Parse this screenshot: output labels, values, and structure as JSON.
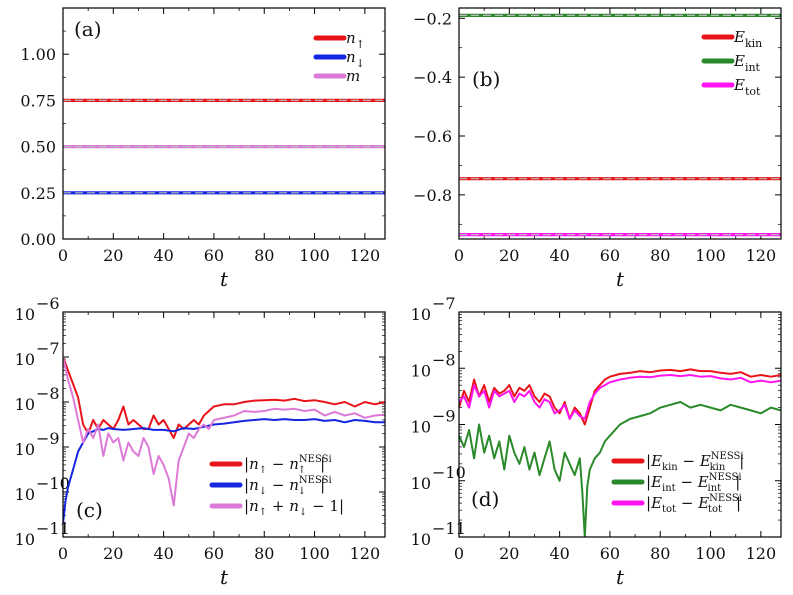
{
  "chart_data": [
    {
      "id": "a",
      "type": "line",
      "panel_label": "(a)",
      "xlabel": "t",
      "ylabel": "",
      "xlim": [
        0,
        128
      ],
      "ylim": [
        0,
        1.25
      ],
      "yscale": "linear",
      "xticks": [
        0,
        20,
        40,
        60,
        80,
        100,
        120
      ],
      "xtick_labels": [
        "0",
        "20",
        "40",
        "60",
        "80",
        "100",
        "120"
      ],
      "yticks": [
        0,
        0.25,
        0.5,
        0.75,
        1.0
      ],
      "ytick_labels": [
        "0.00",
        "0.25",
        "0.50",
        "0.75",
        "1.00"
      ],
      "legend_position": "top-right",
      "series": [
        {
          "name": "n↑",
          "label_main": "n",
          "label_sub": "↑",
          "color": "#e8141a",
          "dashed_overlay": true,
          "x": [
            0,
            128
          ],
          "values": [
            0.75,
            0.75
          ]
        },
        {
          "name": "n↓",
          "label_main": "n",
          "label_sub": "↓",
          "color": "#1426e0",
          "dashed_overlay": true,
          "x": [
            0,
            128
          ],
          "values": [
            0.25,
            0.25
          ]
        },
        {
          "name": "m",
          "label_main": "m",
          "label_sub": "",
          "color": "#dd7ad8",
          "dashed_overlay": true,
          "x": [
            0,
            128
          ],
          "values": [
            0.5,
            0.5
          ]
        }
      ]
    },
    {
      "id": "b",
      "type": "line",
      "panel_label": "(b)",
      "xlabel": "t",
      "ylabel": "",
      "xlim": [
        0,
        128
      ],
      "ylim": [
        -0.95,
        -0.165
      ],
      "yscale": "linear",
      "xticks": [
        0,
        20,
        40,
        60,
        80,
        100,
        120
      ],
      "xtick_labels": [
        "0",
        "20",
        "40",
        "60",
        "80",
        "100",
        "120"
      ],
      "yticks": [
        -0.2,
        -0.4,
        -0.6,
        -0.8
      ],
      "ytick_labels": [
        "−0.2",
        "−0.4",
        "−0.6",
        "−0.8"
      ],
      "legend_position": "top-right",
      "series": [
        {
          "name": "E_kin",
          "label_main": "E",
          "label_sub": "kin",
          "color": "#e8141a",
          "dashed_overlay": true,
          "x": [
            0,
            128
          ],
          "values": [
            -0.745,
            -0.745
          ]
        },
        {
          "name": "E_int",
          "label_main": "E",
          "label_sub": "int",
          "color": "#2a8a2a",
          "dashed_overlay": true,
          "x": [
            0,
            128
          ],
          "values": [
            -0.19,
            -0.19
          ]
        },
        {
          "name": "E_tot",
          "label_main": "E",
          "label_sub": "tot",
          "color": "#ff14f0",
          "dashed_overlay": true,
          "x": [
            0,
            128
          ],
          "values": [
            -0.935,
            -0.935
          ]
        }
      ]
    },
    {
      "id": "c",
      "type": "line",
      "panel_label": "(c)",
      "xlabel": "t",
      "ylabel": "",
      "xlim": [
        0,
        128
      ],
      "ylim": [
        -11,
        -6
      ],
      "yscale": "log10",
      "xticks": [
        0,
        20,
        40,
        60,
        80,
        100,
        120
      ],
      "xtick_labels": [
        "0",
        "20",
        "40",
        "60",
        "80",
        "100",
        "120"
      ],
      "yticks": [
        -11,
        -10,
        -9,
        -8,
        -7,
        -6
      ],
      "ytick_base": [
        "10",
        "10",
        "10",
        "10",
        "10",
        "10"
      ],
      "ytick_exp": [
        "−11",
        "−10",
        "−9",
        "−8",
        "−7",
        "−6"
      ],
      "legend_position": "bottom-right",
      "series": [
        {
          "name": "|n↑ − n↑^NESSi|",
          "label_parts": [
            "|",
            "n",
            "↑",
            " − ",
            "n",
            "↑",
            "NESSi",
            "|"
          ],
          "color": "#e8141a",
          "x": [
            0,
            2,
            4,
            6,
            8,
            10,
            12,
            14,
            16,
            18,
            20,
            22,
            24,
            26,
            28,
            30,
            32,
            34,
            36,
            38,
            40,
            42,
            44,
            46,
            48,
            50,
            52,
            54,
            56,
            58,
            60,
            64,
            68,
            72,
            76,
            80,
            84,
            88,
            92,
            96,
            100,
            104,
            108,
            112,
            116,
            120,
            124,
            128
          ],
          "values": [
            -7.0,
            -7.3,
            -7.6,
            -7.9,
            -8.5,
            -8.7,
            -8.4,
            -8.6,
            -8.4,
            -8.5,
            -8.6,
            -8.4,
            -8.1,
            -8.5,
            -8.4,
            -8.5,
            -8.6,
            -8.6,
            -8.3,
            -8.5,
            -8.4,
            -8.6,
            -8.8,
            -8.5,
            -8.6,
            -8.5,
            -8.4,
            -8.5,
            -8.3,
            -8.2,
            -8.1,
            -8.05,
            -8.05,
            -8.0,
            -7.97,
            -7.96,
            -7.95,
            -7.97,
            -7.93,
            -7.98,
            -7.96,
            -8.0,
            -8.05,
            -8.0,
            -8.1,
            -8.0,
            -8.05,
            -8.0
          ]
        },
        {
          "name": "|n↓ − n↓^NESSi|",
          "label_parts": [
            "|",
            "n",
            "↓",
            " − ",
            "n",
            "↓",
            "NESSi",
            "|"
          ],
          "color": "#1426e0",
          "x": [
            0,
            1,
            2,
            3,
            4,
            6,
            8,
            10,
            12,
            14,
            16,
            18,
            20,
            24,
            28,
            32,
            36,
            40,
            44,
            48,
            52,
            56,
            60,
            64,
            68,
            72,
            76,
            80,
            84,
            88,
            92,
            96,
            100,
            104,
            108,
            112,
            116,
            120,
            124,
            128
          ],
          "values": [
            -10.7,
            -10.2,
            -9.9,
            -9.7,
            -9.5,
            -9.1,
            -8.9,
            -8.7,
            -8.65,
            -8.6,
            -8.62,
            -8.58,
            -8.6,
            -8.62,
            -8.6,
            -8.58,
            -8.62,
            -8.62,
            -8.65,
            -8.58,
            -8.6,
            -8.55,
            -8.5,
            -8.48,
            -8.45,
            -8.42,
            -8.4,
            -8.38,
            -8.4,
            -8.38,
            -8.4,
            -8.4,
            -8.38,
            -8.42,
            -8.4,
            -8.45,
            -8.4,
            -8.42,
            -8.45,
            -8.45
          ]
        },
        {
          "name": "|n↑ + n↓ − 1|",
          "label_parts": [
            "|",
            "n",
            "↑",
            " + ",
            "n",
            "↓",
            " − 1",
            "|"
          ],
          "color": "#dd7ad8",
          "x": [
            0,
            2,
            4,
            6,
            8,
            10,
            12,
            14,
            16,
            18,
            20,
            22,
            24,
            26,
            28,
            30,
            32,
            34,
            36,
            38,
            40,
            42,
            44,
            46,
            48,
            50,
            52,
            54,
            56,
            58,
            60,
            64,
            68,
            72,
            76,
            80,
            84,
            88,
            92,
            96,
            100,
            104,
            108,
            112,
            116,
            120,
            124,
            128
          ],
          "values": [
            -7.0,
            -7.5,
            -7.9,
            -8.4,
            -8.9,
            -8.6,
            -8.8,
            -8.5,
            -9.2,
            -8.7,
            -8.9,
            -8.8,
            -9.3,
            -8.9,
            -9.1,
            -9.2,
            -8.8,
            -9.0,
            -9.6,
            -9.2,
            -9.4,
            -9.7,
            -10.3,
            -9.3,
            -9.0,
            -8.7,
            -8.8,
            -8.6,
            -8.5,
            -8.6,
            -8.4,
            -8.35,
            -8.3,
            -8.2,
            -8.22,
            -8.2,
            -8.15,
            -8.17,
            -8.15,
            -8.2,
            -8.17,
            -8.3,
            -8.22,
            -8.3,
            -8.25,
            -8.35,
            -8.3,
            -8.28
          ]
        }
      ]
    },
    {
      "id": "d",
      "type": "line",
      "panel_label": "(d)",
      "xlabel": "t",
      "ylabel": "",
      "xlim": [
        0,
        128
      ],
      "ylim": [
        -11,
        -7
      ],
      "yscale": "log10",
      "xticks": [
        0,
        20,
        40,
        60,
        80,
        100,
        120
      ],
      "xtick_labels": [
        "0",
        "20",
        "40",
        "60",
        "80",
        "100",
        "120"
      ],
      "yticks": [
        -11,
        -10,
        -9,
        -8,
        -7
      ],
      "ytick_base": [
        "10",
        "10",
        "10",
        "10",
        "10"
      ],
      "ytick_exp": [
        "−11",
        "−10",
        "−9",
        "−8",
        "−7"
      ],
      "legend_position": "bottom-right",
      "series": [
        {
          "name": "|E_kin − E_kin^NESSi|",
          "label_parts": [
            "|",
            "E",
            "kin",
            " − ",
            "E",
            "kin",
            "NESSi",
            "|"
          ],
          "color": "#e8141a",
          "x": [
            0,
            2,
            4,
            6,
            8,
            10,
            12,
            14,
            16,
            18,
            20,
            22,
            24,
            26,
            28,
            30,
            32,
            34,
            36,
            38,
            40,
            42,
            44,
            46,
            48,
            50,
            52,
            54,
            56,
            58,
            60,
            64,
            68,
            72,
            76,
            80,
            84,
            88,
            92,
            96,
            100,
            104,
            108,
            112,
            116,
            120,
            124,
            128
          ],
          "values": [
            -8.7,
            -8.4,
            -8.6,
            -8.2,
            -8.5,
            -8.3,
            -8.6,
            -8.35,
            -8.45,
            -8.4,
            -8.3,
            -8.5,
            -8.35,
            -8.4,
            -8.3,
            -8.5,
            -8.6,
            -8.45,
            -8.5,
            -8.7,
            -8.8,
            -8.6,
            -8.9,
            -8.7,
            -8.8,
            -9.0,
            -8.7,
            -8.4,
            -8.3,
            -8.2,
            -8.15,
            -8.1,
            -8.08,
            -8.05,
            -8.07,
            -8.04,
            -8.03,
            -8.05,
            -8.02,
            -8.05,
            -8.05,
            -8.08,
            -8.1,
            -8.07,
            -8.15,
            -8.12,
            -8.15,
            -8.12
          ]
        },
        {
          "name": "|E_int − E_int^NESSi|",
          "label_parts": [
            "|",
            "E",
            "int",
            " − ",
            "E",
            "int",
            "NESSi",
            "|"
          ],
          "color": "#2a8a2a",
          "x": [
            0,
            2,
            4,
            6,
            8,
            10,
            12,
            14,
            16,
            18,
            20,
            22,
            24,
            26,
            28,
            30,
            32,
            34,
            36,
            38,
            40,
            42,
            44,
            46,
            48,
            49,
            50,
            51,
            52,
            54,
            56,
            58,
            60,
            64,
            68,
            72,
            76,
            80,
            84,
            88,
            92,
            96,
            100,
            104,
            108,
            112,
            116,
            120,
            124,
            128
          ],
          "values": [
            -9.2,
            -9.4,
            -9.1,
            -9.6,
            -9.0,
            -9.5,
            -9.2,
            -9.6,
            -9.3,
            -9.8,
            -9.2,
            -9.5,
            -9.7,
            -9.4,
            -9.8,
            -9.5,
            -9.9,
            -9.6,
            -9.3,
            -9.8,
            -10.0,
            -9.5,
            -9.7,
            -9.9,
            -9.6,
            -10.2,
            -11.0,
            -10.1,
            -9.8,
            -9.6,
            -9.5,
            -9.3,
            -9.2,
            -9.0,
            -8.9,
            -8.85,
            -8.8,
            -8.7,
            -8.65,
            -8.6,
            -8.7,
            -8.65,
            -8.7,
            -8.75,
            -8.65,
            -8.7,
            -8.75,
            -8.8,
            -8.7,
            -8.75
          ]
        },
        {
          "name": "|E_tot − E_tot^NESSi|",
          "label_parts": [
            "|",
            "E",
            "tot",
            " − ",
            "E",
            "tot",
            "NESSi",
            "|"
          ],
          "color": "#ff14f0",
          "x": [
            0,
            2,
            4,
            6,
            8,
            10,
            12,
            14,
            16,
            18,
            20,
            22,
            24,
            26,
            28,
            30,
            32,
            34,
            36,
            38,
            40,
            42,
            44,
            46,
            48,
            50,
            52,
            54,
            56,
            58,
            60,
            64,
            68,
            72,
            76,
            80,
            84,
            88,
            92,
            96,
            100,
            104,
            108,
            112,
            116,
            120,
            124,
            128
          ],
          "values": [
            -8.6,
            -8.5,
            -8.7,
            -8.3,
            -8.5,
            -8.4,
            -8.7,
            -8.4,
            -8.5,
            -8.45,
            -8.4,
            -8.6,
            -8.45,
            -8.5,
            -8.4,
            -8.6,
            -8.7,
            -8.55,
            -8.6,
            -8.8,
            -8.75,
            -8.65,
            -8.9,
            -8.75,
            -8.85,
            -8.9,
            -8.6,
            -8.45,
            -8.35,
            -8.3,
            -8.25,
            -8.2,
            -8.17,
            -8.15,
            -8.16,
            -8.13,
            -8.12,
            -8.14,
            -8.12,
            -8.15,
            -8.14,
            -8.18,
            -8.2,
            -8.17,
            -8.25,
            -8.22,
            -8.25,
            -8.22
          ]
        }
      ]
    }
  ]
}
